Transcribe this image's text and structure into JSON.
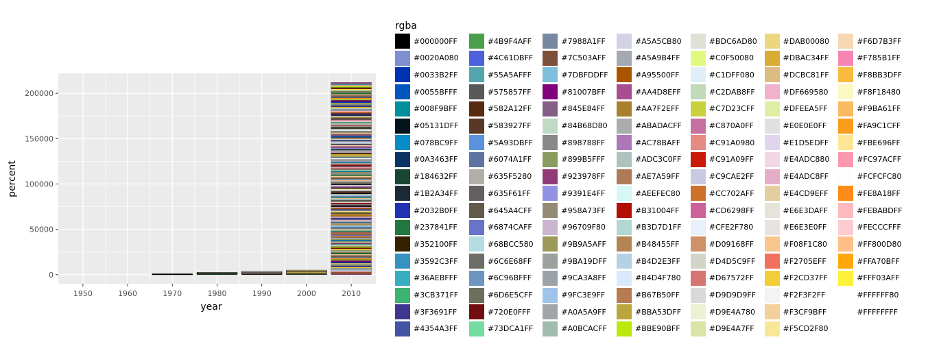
{
  "chart_data": {
    "type": "bar",
    "stacked": true,
    "title": "",
    "xlabel": "year",
    "ylabel": "percent",
    "x_ticks": [
      "1950",
      "1960",
      "1970",
      "1980",
      "1990",
      "2000",
      "2010"
    ],
    "y_ticks": [
      "0",
      "50000",
      "100000",
      "150000",
      "200000"
    ],
    "y_tick_values": [
      0,
      50000,
      100000,
      150000,
      200000
    ],
    "xlim": [
      1944.5,
      2015.5
    ],
    "ylim": [
      -10000,
      222000
    ],
    "grid": true,
    "panel_background": "#ebebeb",
    "legend_position": "right",
    "categories": [
      1970,
      1980,
      1990,
      2000,
      2010
    ],
    "totals": [
      900,
      2600,
      3500,
      5000,
      212000
    ],
    "legend": {
      "title": "rgba",
      "columns": 7,
      "entries": [
        "#000000FF",
        "#0020A080",
        "#0033B2FF",
        "#0055BFFF",
        "#008F9BFF",
        "#05131DFF",
        "#078BC9FF",
        "#0A3463FF",
        "#184632FF",
        "#1B2A34FF",
        "#2032B0FF",
        "#237841FF",
        "#352100FF",
        "#3592C3FF",
        "#36AEBFFF",
        "#3CB371FF",
        "#3F3691FF",
        "#4354A3FF",
        "#4B9F4AFF",
        "#4C61DBFF",
        "#55A5AFFF",
        "#575857FF",
        "#582A12FF",
        "#583927FF",
        "#5A93DBFF",
        "#6074A1FF",
        "#635F5280",
        "#635F61FF",
        "#645A4CFF",
        "#6874CAFF",
        "#68BCC580",
        "#6C6E68FF",
        "#6C96BFFF",
        "#6D6E5CFF",
        "#720E0FFF",
        "#73DCA1FF",
        "#7988A1FF",
        "#7C503AFF",
        "#7DBFDDFF",
        "#81007BFF",
        "#845E84FF",
        "#84B68D80",
        "#898788FF",
        "#899B5FFF",
        "#923978FF",
        "#9391E4FF",
        "#958A73FF",
        "#96709F80",
        "#9B9A5AFF",
        "#9BA19DFF",
        "#9CA3A8FF",
        "#9FC3E9FF",
        "#A0A5A9FF",
        "#A0BCACFF",
        "#A5A5CB80",
        "#A5A9B4FF",
        "#A95500FF",
        "#AA4D8EFF",
        "#AA7F2EFF",
        "#ABADACFF",
        "#AC78BAFF",
        "#ADC3C0FF",
        "#AE7A59FF",
        "#AEEFEC80",
        "#B31004FF",
        "#B3D7D1FF",
        "#B48455FF",
        "#B4D2E3FF",
        "#B4D4F780",
        "#B67B50FF",
        "#BBA53DFF",
        "#BBE90BFF",
        "#BDC6AD80",
        "#C0F50080",
        "#C1DFF080",
        "#C2DAB8FF",
        "#C7D23CFF",
        "#C870A0FF",
        "#C91A0980",
        "#C91A09FF",
        "#C9CAE2FF",
        "#CC702AFF",
        "#CD6298FF",
        "#CFE2F780",
        "#D09168FF",
        "#D4D5C9FF",
        "#D67572FF",
        "#D9D9D9FF",
        "#D9E4A780",
        "#D9E4A7FF",
        "#DAB00080",
        "#DBAC34FF",
        "#DCBC81FF",
        "#DF669580",
        "#DFEEA5FF",
        "#E0E0E0FF",
        "#E1D5EDFF",
        "#E4ADC880",
        "#E4ADC8FF",
        "#E4CD9EFF",
        "#E6E3DAFF",
        "#E6E3E0FF",
        "#F08F1C80",
        "#F2705EFF",
        "#F2CD37FF",
        "#F2F3F2FF",
        "#F3CF9BFF",
        "#F5CD2F80",
        "#F6D7B3FF",
        "#F785B1FF",
        "#F8BB3DFF",
        "#F8F18480",
        "#F9BA61FF",
        "#FA9C1CFF",
        "#FBE696FF",
        "#FC97ACFF",
        "#FCFCFC80",
        "#FE8A18FF",
        "#FEBABDFF",
        "#FECCCFFF",
        "#FF800D80",
        "#FFA70BFF",
        "#FFF03AFF",
        "#FFFFFF80",
        "#FFFFFFFF"
      ]
    }
  }
}
